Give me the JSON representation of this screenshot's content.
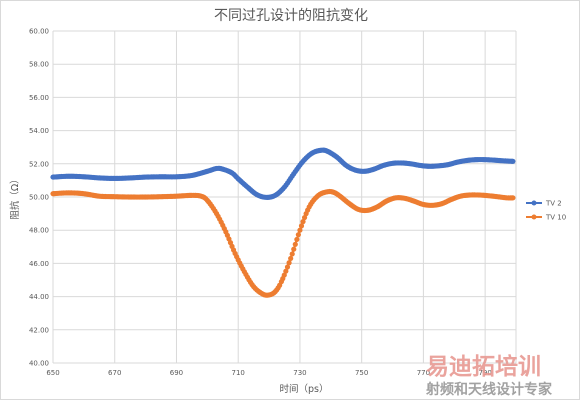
{
  "chart_data": {
    "type": "line",
    "title": "不同过孔设计的阻抗变化",
    "xlabel": "时间（ps）",
    "ylabel": "阻抗（Ω）",
    "xlim": [
      650,
      800
    ],
    "ylim": [
      40,
      60
    ],
    "x_ticks": [
      "650",
      "670",
      "690",
      "710",
      "730",
      "750",
      "770",
      "790"
    ],
    "y_ticks": [
      "40.00",
      "42.00",
      "44.00",
      "46.00",
      "48.00",
      "50.00",
      "52.00",
      "54.00",
      "56.00",
      "58.00",
      "60.00"
    ],
    "grid": true,
    "legend_position": "right",
    "series": [
      {
        "name": "TV 2",
        "color": "#4472c4",
        "x": [
          650,
          655,
          660,
          665,
          670,
          675,
          680,
          685,
          690,
          695,
          700,
          703,
          705,
          708,
          710,
          713,
          716,
          719,
          722,
          725,
          728,
          731,
          734,
          737,
          739,
          742,
          745,
          748,
          751,
          754,
          757,
          760,
          763,
          766,
          769,
          772,
          775,
          778,
          781,
          784,
          787,
          790,
          793,
          796,
          799
        ],
        "y": [
          51.2,
          51.25,
          51.22,
          51.15,
          51.12,
          51.15,
          51.2,
          51.22,
          51.22,
          51.3,
          51.55,
          51.72,
          51.68,
          51.45,
          51.1,
          50.6,
          50.15,
          49.98,
          50.1,
          50.6,
          51.4,
          52.15,
          52.65,
          52.82,
          52.75,
          52.4,
          51.9,
          51.62,
          51.55,
          51.68,
          51.9,
          52.03,
          52.05,
          52.0,
          51.9,
          51.85,
          51.88,
          51.95,
          52.1,
          52.2,
          52.25,
          52.25,
          52.22,
          52.18,
          52.15
        ]
      },
      {
        "name": "TV 10",
        "color": "#ed7d31",
        "x": [
          650,
          655,
          660,
          665,
          670,
          675,
          680,
          685,
          690,
          695,
          698,
          700,
          703,
          706,
          709,
          712,
          715,
          718,
          720,
          722,
          724,
          727,
          730,
          733,
          736,
          739,
          741,
          743,
          746,
          749,
          752,
          755,
          758,
          761,
          764,
          767,
          770,
          773,
          776,
          779,
          782,
          785,
          788,
          791,
          794,
          797,
          799
        ],
        "y": [
          50.2,
          50.25,
          50.2,
          50.05,
          50.02,
          50.0,
          50.0,
          50.02,
          50.05,
          50.1,
          50.05,
          49.8,
          49.0,
          47.9,
          46.6,
          45.5,
          44.6,
          44.15,
          44.1,
          44.3,
          44.9,
          46.3,
          48.0,
          49.4,
          50.1,
          50.32,
          50.28,
          50.05,
          49.6,
          49.25,
          49.2,
          49.4,
          49.75,
          49.95,
          49.92,
          49.75,
          49.55,
          49.5,
          49.6,
          49.85,
          50.05,
          50.12,
          50.12,
          50.08,
          50.02,
          49.95,
          49.95
        ]
      }
    ]
  },
  "watermark": {
    "line1": "易迪拓培训",
    "line2": "射频和天线设计专家"
  }
}
